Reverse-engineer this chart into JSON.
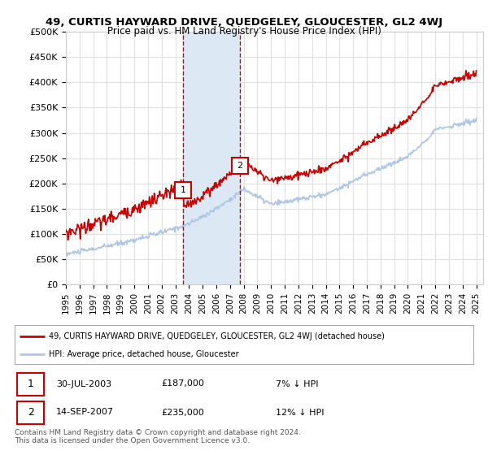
{
  "title": "49, CURTIS HAYWARD DRIVE, QUEDGELEY, GLOUCESTER, GL2 4WJ",
  "subtitle": "Price paid vs. HM Land Registry's House Price Index (HPI)",
  "ylabel_ticks": [
    "£0",
    "£50K",
    "£100K",
    "£150K",
    "£200K",
    "£250K",
    "£300K",
    "£350K",
    "£400K",
    "£450K",
    "£500K"
  ],
  "ytick_values": [
    0,
    50000,
    100000,
    150000,
    200000,
    250000,
    300000,
    350000,
    400000,
    450000,
    500000
  ],
  "ylim": [
    0,
    500000
  ],
  "xlim_start": 1995.0,
  "xlim_end": 2025.5,
  "hpi_color": "#aec6e8",
  "price_color": "#cc0000",
  "purchase1_date": 2003.58,
  "purchase1_price": 187000,
  "purchase2_date": 2007.71,
  "purchase2_price": 235000,
  "vline_color": "#cc0000",
  "shade_color": "#dce9f5",
  "legend_label_price": "49, CURTIS HAYWARD DRIVE, QUEDGELEY, GLOUCESTER, GL2 4WJ (detached house)",
  "legend_label_hpi": "HPI: Average price, detached house, Gloucester",
  "table_row1": [
    "1",
    "30-JUL-2003",
    "£187,000",
    "7% ↓ HPI"
  ],
  "table_row2": [
    "2",
    "14-SEP-2007",
    "£235,000",
    "12% ↓ HPI"
  ],
  "footer": "Contains HM Land Registry data © Crown copyright and database right 2024.\nThis data is licensed under the Open Government Licence v3.0.",
  "background_color": "#ffffff",
  "grid_color": "#e0e0e0",
  "xtick_years": [
    1995,
    1996,
    1997,
    1998,
    1999,
    2000,
    2001,
    2002,
    2003,
    2004,
    2005,
    2006,
    2007,
    2008,
    2009,
    2010,
    2011,
    2012,
    2013,
    2014,
    2015,
    2016,
    2017,
    2018,
    2019,
    2020,
    2021,
    2022,
    2023,
    2024,
    2025
  ]
}
